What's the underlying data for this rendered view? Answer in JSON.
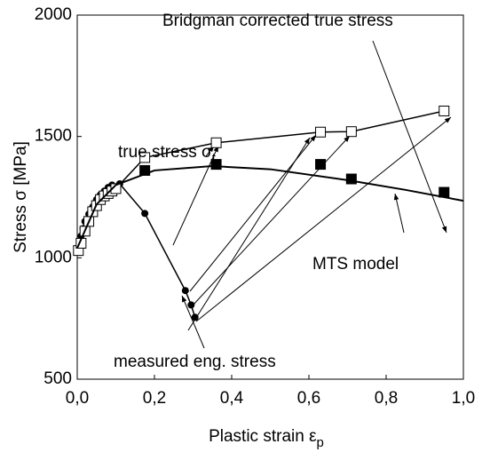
{
  "chart_data": {
    "type": "line",
    "x_label": {
      "text": "Plastic strain  ε",
      "sub": "p"
    },
    "y_label": "Stress  σ  [MPa]",
    "xlim": [
      0,
      1
    ],
    "ylim": [
      500,
      2000
    ],
    "xticks": [
      {
        "value": 0,
        "label": "0,0"
      },
      {
        "value": 0.2,
        "label": "0,2"
      },
      {
        "value": 0.4,
        "label": "0,4"
      },
      {
        "value": 0.6,
        "label": "0,6"
      },
      {
        "value": 0.8,
        "label": "0,8"
      },
      {
        "value": 1,
        "label": "1,0"
      }
    ],
    "yticks": [
      500,
      1000,
      1500,
      2000
    ],
    "series": [
      {
        "name": "measured eng. stress",
        "marker": "circle",
        "color": "#000000",
        "x": [
          0.003,
          0.006,
          0.01,
          0.015,
          0.02,
          0.03,
          0.04,
          0.05,
          0.06,
          0.07,
          0.08,
          0.09,
          0.11,
          0.175,
          0.28,
          0.295,
          0.305
        ],
        "values": [
          1036,
          1060,
          1090,
          1120,
          1150,
          1180,
          1210,
          1240,
          1260,
          1275,
          1290,
          1300,
          1305,
          1183,
          865,
          806,
          755
        ]
      },
      {
        "name": "true stress σ",
        "sub": "t",
        "marker": "open-square",
        "color": "#000000",
        "x": [
          0.003,
          0.01,
          0.02,
          0.03,
          0.04,
          0.05,
          0.06,
          0.07,
          0.08,
          0.09,
          0.1,
          0.175,
          0.36,
          0.63,
          0.71,
          0.95
        ],
        "values": [
          1030,
          1060,
          1110,
          1150,
          1190,
          1215,
          1240,
          1255,
          1265,
          1275,
          1285,
          1413,
          1474,
          1518,
          1520,
          1605
        ]
      },
      {
        "name": "Bridgman corrected true stress",
        "marker": "filled-square",
        "color": "#000000",
        "x": [
          0.175,
          0.36,
          0.63,
          0.71,
          0.95
        ],
        "values": [
          1360,
          1385,
          1385,
          1325,
          1270
        ]
      },
      {
        "name": "MTS model",
        "marker": "none",
        "color": "#000000",
        "x": [
          0,
          0.05,
          0.1,
          0.2,
          0.35,
          0.5,
          0.7,
          0.85,
          1.0
        ],
        "values": [
          1040,
          1220,
          1300,
          1360,
          1378,
          1365,
          1320,
          1280,
          1235
        ]
      }
    ]
  }
}
